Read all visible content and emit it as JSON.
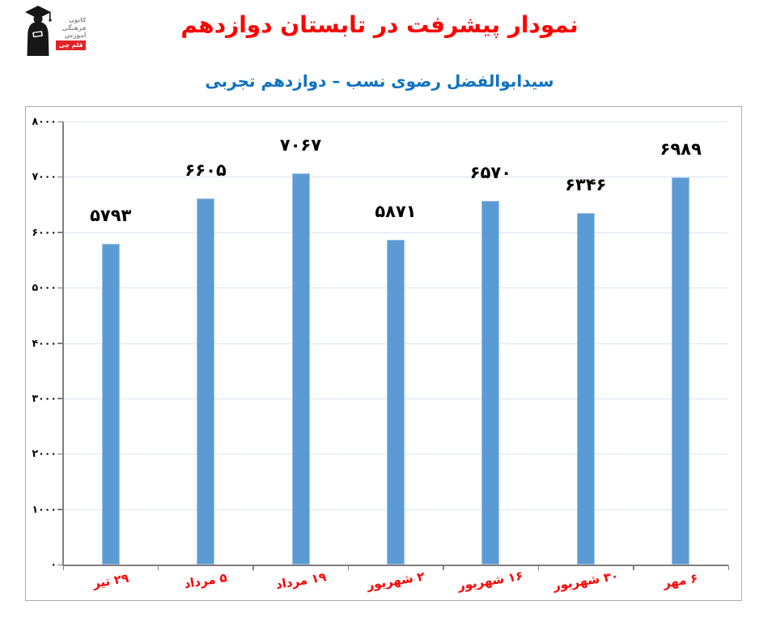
{
  "header": {
    "title": "نمودار پیشرفت در تابستان دوازدهم",
    "subtitle": "سیدابوالفضل رضوی نسب – دوازدهم تجربی"
  },
  "logo": {
    "icon": "graduate-icon",
    "lines": [
      "کانون",
      "فرهنگی",
      "آموزش"
    ],
    "badge": "قلم چی"
  },
  "colors": {
    "title_red": "#FE0000",
    "subtitle_blue": "#0F72C1",
    "bar_fill": "#5B9BD5",
    "bar_border": "#9DC3E6",
    "gridline": "#D6E5F4",
    "axis_gray": "#7F7F7F",
    "box_border": "#ACACAC",
    "x_label_red": "#FE0000",
    "logo_red": "#E32227",
    "logo_gray": "#8E8E8E"
  },
  "chart_data": {
    "type": "bar",
    "title": "نمودار پیشرفت در تابستان دوازدهم",
    "subtitle": "سیدابوالفضل رضوی نسب – دوازدهم تجربی",
    "categories": [
      "۲۹ تیر",
      "۵ مرداد",
      "۱۹ مرداد",
      "۲ شهریور",
      "۱۶ شهریور",
      "۳۰ شهریور",
      "۶ مهر"
    ],
    "values": [
      5793,
      6605,
      7067,
      5871,
      6570,
      6346,
      6989
    ],
    "value_labels": [
      "۵۷۹۳",
      "۶۶۰۵",
      "۷۰۶۷",
      "۵۸۷۱",
      "۶۵۷۰",
      "۶۳۴۶",
      "۶۹۸۹"
    ],
    "xlabel": "",
    "ylabel": "",
    "ylim": [
      0,
      8000
    ],
    "y_tick_step": 1000,
    "y_tick_labels": [
      "۰",
      "۱۰۰۰",
      "۲۰۰۰",
      "۳۰۰۰",
      "۴۰۰۰",
      "۵۰۰۰",
      "۶۰۰۰",
      "۷۰۰۰",
      "۸۰۰۰"
    ],
    "grid": true,
    "legend": false
  }
}
